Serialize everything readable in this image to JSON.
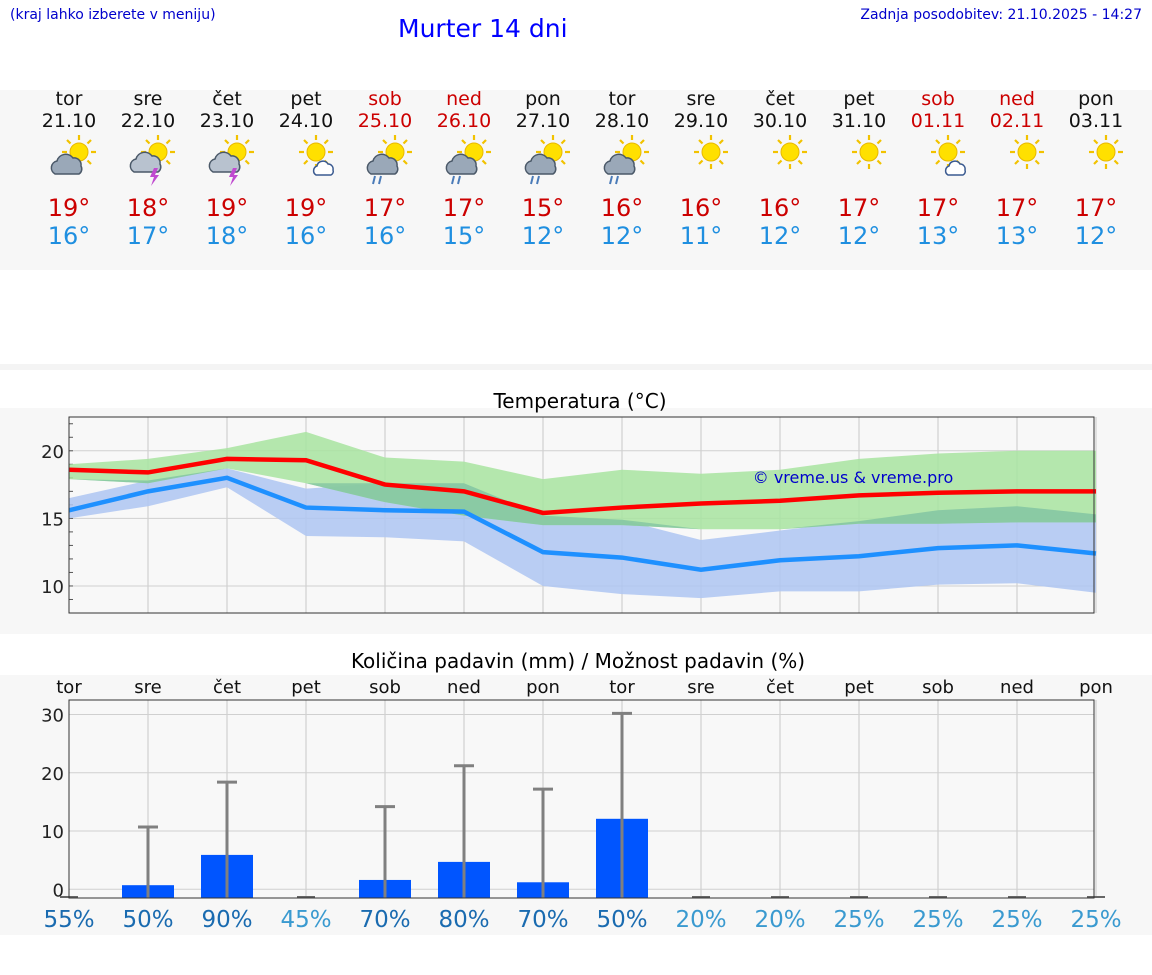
{
  "header": {
    "menu_hint": "(kraj lahko izberete v meniju)",
    "title": "Murter 14 dni",
    "updated": "Zadnja posodobitev: 21.10.2025 - 14:27"
  },
  "colors": {
    "max_line": "#ff0000",
    "min_line": "#1e90ff",
    "max_band": "#a8e4a0",
    "min_band": "#aec6f2",
    "bar": "#0055ff",
    "whisker": "#808080"
  },
  "days": [
    {
      "name": "tor",
      "date": "21.10",
      "weekend": false,
      "icon": "sun-cloud-icon",
      "max": "19°",
      "min": "16°"
    },
    {
      "name": "sre",
      "date": "22.10",
      "weekend": false,
      "icon": "sun-thunder-icon",
      "max": "18°",
      "min": "17°"
    },
    {
      "name": "čet",
      "date": "23.10",
      "weekend": false,
      "icon": "sun-thunder-icon",
      "max": "19°",
      "min": "18°"
    },
    {
      "name": "pet",
      "date": "24.10",
      "weekend": false,
      "icon": "sun-small-cloud-icon",
      "max": "19°",
      "min": "16°"
    },
    {
      "name": "sob",
      "date": "25.10",
      "weekend": true,
      "icon": "sun-cloud-rain-icon",
      "max": "17°",
      "min": "16°"
    },
    {
      "name": "ned",
      "date": "26.10",
      "weekend": true,
      "icon": "sun-cloud-rain-icon",
      "max": "17°",
      "min": "15°"
    },
    {
      "name": "pon",
      "date": "27.10",
      "weekend": false,
      "icon": "sun-cloud-rain-icon",
      "max": "15°",
      "min": "12°"
    },
    {
      "name": "tor",
      "date": "28.10",
      "weekend": false,
      "icon": "sun-cloud-rain-icon",
      "max": "16°",
      "min": "12°"
    },
    {
      "name": "sre",
      "date": "29.10",
      "weekend": false,
      "icon": "sun-icon",
      "max": "16°",
      "min": "11°"
    },
    {
      "name": "čet",
      "date": "30.10",
      "weekend": false,
      "icon": "sun-icon",
      "max": "16°",
      "min": "12°"
    },
    {
      "name": "pet",
      "date": "31.10",
      "weekend": false,
      "icon": "sun-icon",
      "max": "17°",
      "min": "12°"
    },
    {
      "name": "sob",
      "date": "01.11",
      "weekend": true,
      "icon": "sun-small-cloud-icon",
      "max": "17°",
      "min": "13°"
    },
    {
      "name": "ned",
      "date": "02.11",
      "weekend": true,
      "icon": "sun-icon",
      "max": "17°",
      "min": "13°"
    },
    {
      "name": "pon",
      "date": "03.11",
      "weekend": false,
      "icon": "sun-icon",
      "max": "17°",
      "min": "12°"
    }
  ],
  "chart_data": [
    {
      "type": "line",
      "title": "Temperatura (°C)",
      "watermark": "© vreme.us & vreme.pro",
      "ylim": [
        8,
        22.5
      ],
      "yticks": [
        10,
        15,
        20
      ],
      "x": [
        0,
        1,
        2,
        3,
        4,
        5,
        6,
        7,
        8,
        9,
        10,
        11,
        12,
        13
      ],
      "series": [
        {
          "name": "max",
          "values": [
            18.6,
            18.4,
            19.4,
            19.3,
            17.5,
            17.0,
            15.4,
            15.8,
            16.1,
            16.3,
            16.7,
            16.9,
            17.0,
            17.0
          ]
        },
        {
          "name": "min",
          "values": [
            15.6,
            17.0,
            18.0,
            15.8,
            15.6,
            15.5,
            12.5,
            12.1,
            11.2,
            11.9,
            12.2,
            12.8,
            13.0,
            12.4
          ]
        },
        {
          "name": "max_range_high",
          "values": [
            19.0,
            19.4,
            20.2,
            21.4,
            19.5,
            19.2,
            17.9,
            18.6,
            18.3,
            18.6,
            19.4,
            19.8,
            20.0,
            20.0
          ]
        },
        {
          "name": "max_range_low",
          "values": [
            17.9,
            17.6,
            18.7,
            17.6,
            16.2,
            15.2,
            14.5,
            14.5,
            14.2,
            14.2,
            14.6,
            14.6,
            14.7,
            14.7
          ]
        },
        {
          "name": "min_range_high",
          "values": [
            16.5,
            17.8,
            18.7,
            17.2,
            17.6,
            17.6,
            15.2,
            14.9,
            13.4,
            14.1,
            14.8,
            15.6,
            15.9,
            15.3
          ]
        },
        {
          "name": "min_range_low",
          "values": [
            15.0,
            15.9,
            17.3,
            13.7,
            13.6,
            13.3,
            10.0,
            9.4,
            9.1,
            9.6,
            9.6,
            10.1,
            10.2,
            9.5
          ]
        }
      ]
    },
    {
      "type": "bar",
      "title": "Količina padavin (mm) / Možnost padavin (%)",
      "ylim": [
        -1.5,
        32.5
      ],
      "yticks": [
        0,
        10,
        20,
        30
      ],
      "categories": [
        "tor",
        "sre",
        "čet",
        "pet",
        "sob",
        "ned",
        "pon",
        "tor",
        "sre",
        "čet",
        "pet",
        "sob",
        "ned",
        "pon"
      ],
      "values": [
        0,
        0.7,
        5.9,
        0,
        1.6,
        4.7,
        1.2,
        12.1,
        0,
        0,
        0,
        0,
        0,
        0
      ],
      "whisker_max": [
        0,
        10.7,
        18.4,
        0,
        14.2,
        21.2,
        17.2,
        30.2,
        0,
        0,
        0,
        0,
        0,
        0
      ],
      "chance": [
        "55%",
        "50%",
        "90%",
        "45%",
        "70%",
        "80%",
        "70%",
        "50%",
        "20%",
        "20%",
        "25%",
        "25%",
        "25%",
        "25%"
      ],
      "chance_values": [
        55,
        50,
        90,
        45,
        70,
        80,
        70,
        50,
        20,
        20,
        25,
        25,
        25,
        25
      ]
    }
  ]
}
